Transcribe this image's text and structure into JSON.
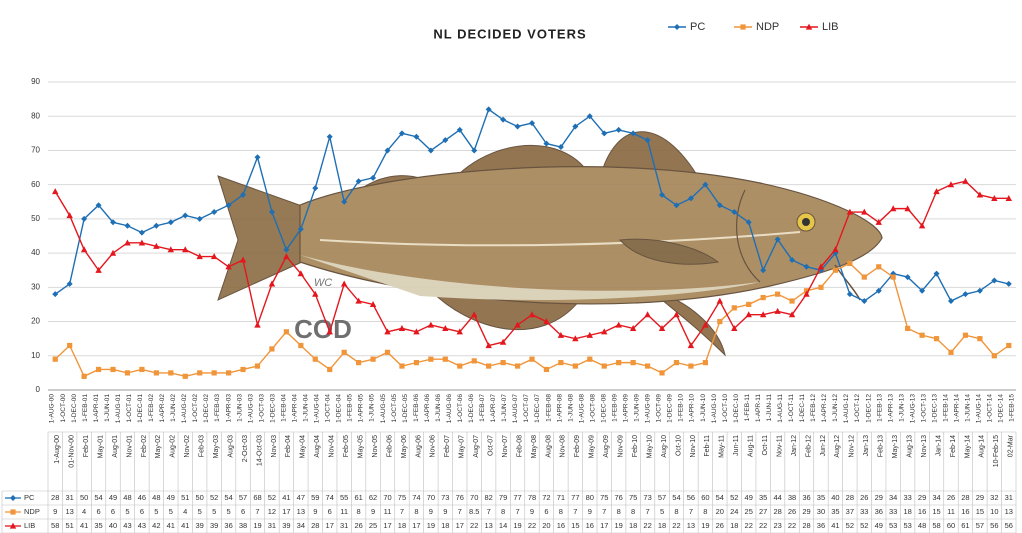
{
  "chart_data": {
    "type": "line",
    "title": "NL DECIDED VOTERS",
    "ylim": [
      0,
      90
    ],
    "yticks": [
      0,
      10,
      20,
      30,
      40,
      50,
      60,
      70,
      80,
      90
    ],
    "grid": true,
    "legend": "top-right",
    "fish_label": "COD",
    "signature": "WC",
    "date_axis_labels": [
      "1-AUG-00",
      "1-OCT-00",
      "1-DEC-00",
      "1-FEB-01",
      "1-APR-01",
      "1-JUN-01",
      "1-AUG-01",
      "1-OCT-01",
      "1-DEC-01",
      "1-FEB-02",
      "1-APR-02",
      "1-JUN-02",
      "1-AUG-02",
      "1-OCT-02",
      "1-DEC-02",
      "1-FEB-03",
      "1-APR-03",
      "1-JUN-03",
      "1-AUG-03",
      "1-OCT-03",
      "1-DEC-03",
      "1-FEB-04",
      "1-APR-04",
      "1-JUN-04",
      "1-AUG-04",
      "1-OCT-04",
      "1-DEC-04",
      "1-FEB-05",
      "1-APR-05",
      "1-JUN-05",
      "1-AUG-05",
      "1-OCT-05",
      "1-DEC-05",
      "1-FEB-06",
      "1-APR-06",
      "1-JUN-06",
      "1-AUG-06",
      "1-OCT-06",
      "1-DEC-06",
      "1-FEB-07",
      "1-APR-07",
      "1-JUN-07",
      "1-AUG-07",
      "1-OCT-07",
      "1-DEC-07",
      "1-FEB-08",
      "1-APR-08",
      "1-JUN-08",
      "1-AUG-08",
      "1-OCT-08",
      "1-DEC-08",
      "1-FEB-09",
      "1-APR-09",
      "1-JUN-09",
      "1-AUG-09",
      "1-OCT-09",
      "1-DEC-09",
      "1-FEB-10",
      "1-APR-10",
      "1-JUN-10",
      "1-AUG-10",
      "1-OCT-10",
      "1-DEC-10",
      "1-FEB-11",
      "1-APR-11",
      "1-JUN-11",
      "1-AUG-11",
      "1-OCT-11",
      "1-DEC-11",
      "1-FEB-12",
      "1-APR-12",
      "1-JUN-12",
      "1-AUG-12",
      "1-OCT-12",
      "1-DEC-12",
      "1-FEB-13",
      "1-APR-13",
      "1-JUN-13",
      "1-AUG-13",
      "1-OCT-13",
      "1-DEC-13",
      "1-FEB-14",
      "1-APR-14",
      "1-JUN-14",
      "1-AUG-14",
      "1-OCT-14",
      "1-DEC-14",
      "1-FEB-15"
    ],
    "categories": [
      "1-Aug-00",
      "01-Nov-00",
      "Feb-01",
      "May-01",
      "Aug-01",
      "Nov-01",
      "Feb-02",
      "May-02",
      "Aug-02",
      "Nov-02",
      "Feb-03",
      "May-03",
      "Aug-03",
      "2-Oct-03",
      "14-Oct-03",
      "Nov-03",
      "Feb-04",
      "May-04",
      "Aug-04",
      "Nov-04",
      "Feb-05",
      "May-05",
      "Nov-05",
      "Feb-06",
      "May-06",
      "Aug-06",
      "Nov-06",
      "Feb-07",
      "May-07",
      "Aug-07",
      "Oct-07",
      "Nov-07",
      "Feb-08",
      "May-08",
      "Aug-08",
      "Nov-08",
      "Feb-09",
      "May-09",
      "Aug-09",
      "Nov-09",
      "Feb-10",
      "May-10",
      "Aug-10",
      "Oct-10",
      "Nov-10",
      "Feb-11",
      "May-11",
      "Jun-11",
      "Aug-11",
      "Oct-11",
      "Nov-11",
      "Jan-12",
      "Feb-12",
      "Jun-12",
      "Aug-12",
      "Nov-12",
      "Jan-13",
      "Feb-13",
      "May-13",
      "Aug-13",
      "Nov-13",
      "Jan-14",
      "Feb-14",
      "May-14",
      "Aug-14",
      "10-Feb-15",
      "02-Mar"
    ],
    "series": [
      {
        "name": "PC",
        "color": "#1f6fb4",
        "marker": "diamond",
        "values": [
          28,
          31,
          50,
          54,
          49,
          48,
          46,
          48,
          49,
          51,
          50,
          52,
          54,
          57,
          68,
          52,
          41,
          47,
          59,
          74,
          55,
          61,
          62,
          70,
          75,
          74,
          70,
          73,
          76,
          70,
          82,
          79,
          77,
          78,
          72,
          71,
          77,
          80,
          75,
          76,
          75,
          73,
          57,
          54,
          56,
          60,
          54,
          52,
          49,
          35,
          44,
          38,
          36,
          35,
          40,
          28,
          26,
          29,
          34,
          33,
          29,
          34,
          26,
          28,
          29,
          32,
          31
        ]
      },
      {
        "name": "NDP",
        "color": "#f0953a",
        "marker": "square",
        "values": [
          9,
          13,
          4,
          6,
          6,
          5,
          6,
          5,
          5,
          4,
          5,
          5,
          5,
          6,
          7,
          12,
          17,
          13,
          9,
          6,
          11,
          8,
          9,
          11,
          7,
          8,
          9,
          9,
          7,
          8.5,
          7,
          8,
          7,
          9,
          6,
          8,
          7,
          9,
          7,
          8,
          8,
          7,
          5,
          8,
          7,
          8,
          20,
          24,
          25,
          27,
          28,
          26,
          29,
          30,
          35,
          37,
          33,
          36,
          33,
          18,
          16,
          15,
          11,
          16,
          15,
          10,
          13
        ]
      },
      {
        "name": "LIB",
        "color": "#e3171d",
        "marker": "triangle",
        "values": [
          58,
          51,
          41,
          35,
          40,
          43,
          43,
          42,
          41,
          41,
          39,
          39,
          36,
          38,
          19,
          31,
          39,
          34,
          28,
          17,
          31,
          26,
          25,
          17,
          18,
          17,
          19,
          18,
          17,
          22,
          13,
          14,
          19,
          22,
          20,
          16,
          15,
          16,
          17,
          19,
          18,
          22,
          18,
          22,
          13,
          19,
          26,
          18,
          22,
          22,
          23,
          22,
          28,
          36,
          41,
          52,
          52,
          49,
          53,
          53,
          48,
          58,
          60,
          61,
          57,
          56,
          56
        ]
      }
    ]
  }
}
